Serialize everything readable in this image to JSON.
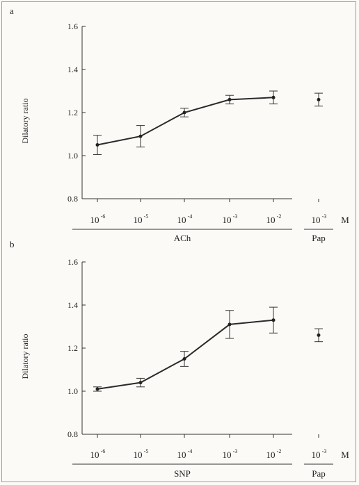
{
  "chart_data": [
    {
      "type": "line",
      "panel_label": "a",
      "ylabel": "Dilatory ratio",
      "ylim": [
        0.8,
        1.6
      ],
      "yticks": [
        "0.8",
        "1.0",
        "1.2",
        "1.4",
        "1.6"
      ],
      "categories": [
        {
          "base": "10",
          "exp": "-6"
        },
        {
          "base": "10",
          "exp": "-5"
        },
        {
          "base": "10",
          "exp": "-4"
        },
        {
          "base": "10",
          "exp": "-3"
        },
        {
          "base": "10",
          "exp": "-2"
        }
      ],
      "series": [
        {
          "values": [
            1.05,
            1.09,
            1.2,
            1.26,
            1.27
          ],
          "errors": [
            0.045,
            0.05,
            0.02,
            0.02,
            0.03
          ]
        }
      ],
      "agent_label": "ACh",
      "reference": {
        "category": {
          "base": "10",
          "exp": "-3"
        },
        "value": 1.26,
        "error": 0.03,
        "label": "Pap"
      },
      "unit": "M"
    },
    {
      "type": "line",
      "panel_label": "b",
      "ylabel": "Dilatory ratio",
      "ylim": [
        0.8,
        1.6
      ],
      "yticks": [
        "0.8",
        "1.0",
        "1.2",
        "1.4",
        "1.6"
      ],
      "categories": [
        {
          "base": "10",
          "exp": "-6"
        },
        {
          "base": "10",
          "exp": "-5"
        },
        {
          "base": "10",
          "exp": "-4"
        },
        {
          "base": "10",
          "exp": "-3"
        },
        {
          "base": "10",
          "exp": "-2"
        }
      ],
      "series": [
        {
          "values": [
            1.01,
            1.04,
            1.15,
            1.31,
            1.33
          ],
          "errors": [
            0.01,
            0.02,
            0.035,
            0.065,
            0.06
          ]
        }
      ],
      "agent_label": "SNP",
      "reference": {
        "category": {
          "base": "10",
          "exp": "-3"
        },
        "value": 1.26,
        "error": 0.03,
        "label": "Pap"
      },
      "unit": "M"
    }
  ]
}
